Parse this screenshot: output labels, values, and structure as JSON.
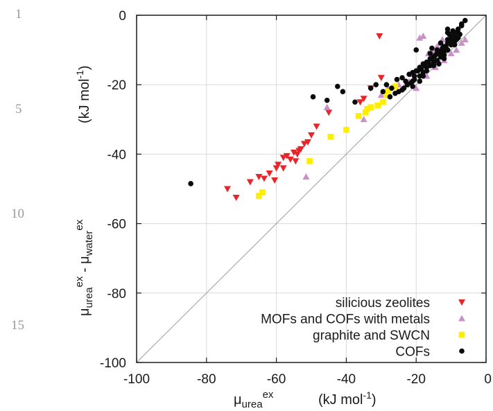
{
  "line_numbers": [
    "1",
    "5",
    "10",
    "15"
  ],
  "chart_data": {
    "type": "scatter",
    "xlabel": {
      "main": "μ",
      "sub": "urea",
      "sup": "ex",
      "unit": "(kJ mol",
      "unit_sup": "-1",
      "unit_end": ")"
    },
    "ylabel": {
      "main1": "μ",
      "sub1": "urea",
      "sup1": "ex",
      "minus": " - μ",
      "sub2": "water",
      "sup2": "ex",
      "unit": "(kJ mol",
      "unit_sup": "-1",
      "unit_end": ")"
    },
    "xlim": [
      -100,
      0
    ],
    "ylim": [
      -100,
      0
    ],
    "xticks": [
      "-100",
      "-80",
      "-60",
      "-40",
      "-20",
      "0"
    ],
    "yticks": [
      "-100",
      "-80",
      "-60",
      "-40",
      "-20",
      "0"
    ],
    "grid": true,
    "diagonal_line": true,
    "legend_position": "bottom-right",
    "series": [
      {
        "name": "silicious zeolites",
        "marker": "triangle-down",
        "color": "#e8252a",
        "x": [
          -30.5,
          -74,
          -71.5,
          -67.5,
          -65,
          -63.5,
          -62,
          -60,
          -59.5,
          -58,
          -57,
          -56,
          -55,
          -54,
          -53,
          -52,
          -51,
          -50,
          -48.5,
          -45,
          -35,
          -33,
          -30,
          -28,
          -36,
          -54.5,
          -53.5,
          -60.5,
          -58
        ],
        "y": [
          -6,
          -50,
          -52.5,
          -48,
          -46.5,
          -47,
          -45.5,
          -44,
          -43,
          -41,
          -40.5,
          -41.5,
          -39.5,
          -40,
          -38.5,
          -37,
          -36.5,
          -34.5,
          -32,
          -28,
          -24,
          -21,
          -18,
          -22,
          -25,
          -42,
          -39,
          -47.5,
          -44
        ]
      },
      {
        "name": "MOFs and COFs with metals",
        "marker": "triangle-up",
        "color": "#c891c8",
        "x": [
          -51.5,
          -45.5,
          -35,
          -30,
          -28,
          -25,
          -22,
          -19,
          -18,
          -16.5,
          -15,
          -14,
          -13,
          -12.5,
          -11.5,
          -10.5,
          -9,
          -8,
          -7,
          -6,
          -20,
          -17,
          -14.5,
          -12,
          -10,
          -8.5,
          -23,
          -21
        ],
        "y": [
          -46.5,
          -26.5,
          -30,
          -23,
          -21,
          -20,
          -19,
          -6.5,
          -6,
          -11,
          -10.5,
          -9,
          -8,
          -7,
          -9,
          -7.5,
          -6.5,
          -6,
          -8,
          -7,
          -21,
          -17.5,
          -15,
          -13,
          -11,
          -10,
          -20,
          -17
        ]
      },
      {
        "name": "graphite and SWCN",
        "marker": "square",
        "color": "#ffee00",
        "x": [
          -65,
          -64,
          -50.5,
          -44.5,
          -40,
          -36.5,
          -34.5,
          -33,
          -31,
          -29.5,
          -28,
          -26,
          -34,
          -28.5
        ],
        "y": [
          -52,
          -51,
          -42,
          -35,
          -33,
          -29,
          -28,
          -26.5,
          -26,
          -25,
          -22,
          -20.5,
          -27,
          -23
        ]
      },
      {
        "name": "COFs",
        "marker": "circle",
        "color": "#0a0a0a",
        "x": [
          -84.5,
          -49.5,
          -45.5,
          -42.5,
          -41,
          -37.5,
          -33,
          -31.5,
          -29.5,
          -28.5,
          -27,
          -25.5,
          -24,
          -23,
          -22,
          -21,
          -20,
          -19,
          -18,
          -17,
          -16,
          -15,
          -14,
          -13,
          -12,
          -11,
          -10,
          -9,
          -8,
          -7,
          -6,
          -20.5,
          -19.5,
          -18.5,
          -17.5,
          -16.5,
          -15.5,
          -14.5,
          -13.5,
          -12.5,
          -11.5,
          -10.5,
          -9.5,
          -8.5,
          -7.5,
          -22.5,
          -21.5,
          -20.5,
          -18,
          -16,
          -14,
          -12,
          -10,
          -8,
          -25,
          -24,
          -19,
          -17,
          -15,
          -13,
          -11,
          -9,
          -14,
          -12,
          -10,
          -8,
          -16,
          -13,
          -11,
          -9,
          -7,
          -27.5,
          -26,
          -23.5,
          -21,
          -19,
          -17,
          -15,
          -13,
          -11,
          -10,
          -9,
          -12,
          -15,
          -18,
          -21,
          -11,
          -9.5,
          -10.5,
          -12,
          -13.5,
          -20,
          -15.5,
          -11,
          -8.5
        ],
        "y": [
          -48.5,
          -23.5,
          -24.5,
          -20.5,
          -22,
          -25,
          -21,
          -20,
          -22,
          -20,
          -21,
          -18.5,
          -18,
          -19,
          -17,
          -16.5,
          -16,
          -15,
          -14,
          -13.5,
          -12.5,
          -12,
          -11,
          -10.5,
          -9.5,
          -8,
          -7,
          -6,
          -5,
          -3,
          -1.5,
          -17.5,
          -16,
          -15.5,
          -14.5,
          -13.5,
          -12.5,
          -11.5,
          -11,
          -9.5,
          -9,
          -8,
          -7.5,
          -6.5,
          -5.5,
          -20,
          -19.5,
          -18.5,
          -16.5,
          -14.5,
          -13,
          -10.5,
          -8.5,
          -6.5,
          -22,
          -21.5,
          -19,
          -16,
          -14,
          -12,
          -10,
          -7.5,
          -10,
          -9,
          -6,
          -4,
          -11,
          -8,
          -7,
          -5,
          -2.5,
          -23.5,
          -22.5,
          -21,
          -19,
          -17.5,
          -15,
          -13.5,
          -11.5,
          -10,
          -8.5,
          -8.5,
          -11.5,
          -14.5,
          -17.5,
          -20.5,
          -4,
          -4.5,
          -5.5,
          -12.5,
          -14,
          -10,
          -9.5,
          -5,
          -7
        ]
      }
    ]
  }
}
